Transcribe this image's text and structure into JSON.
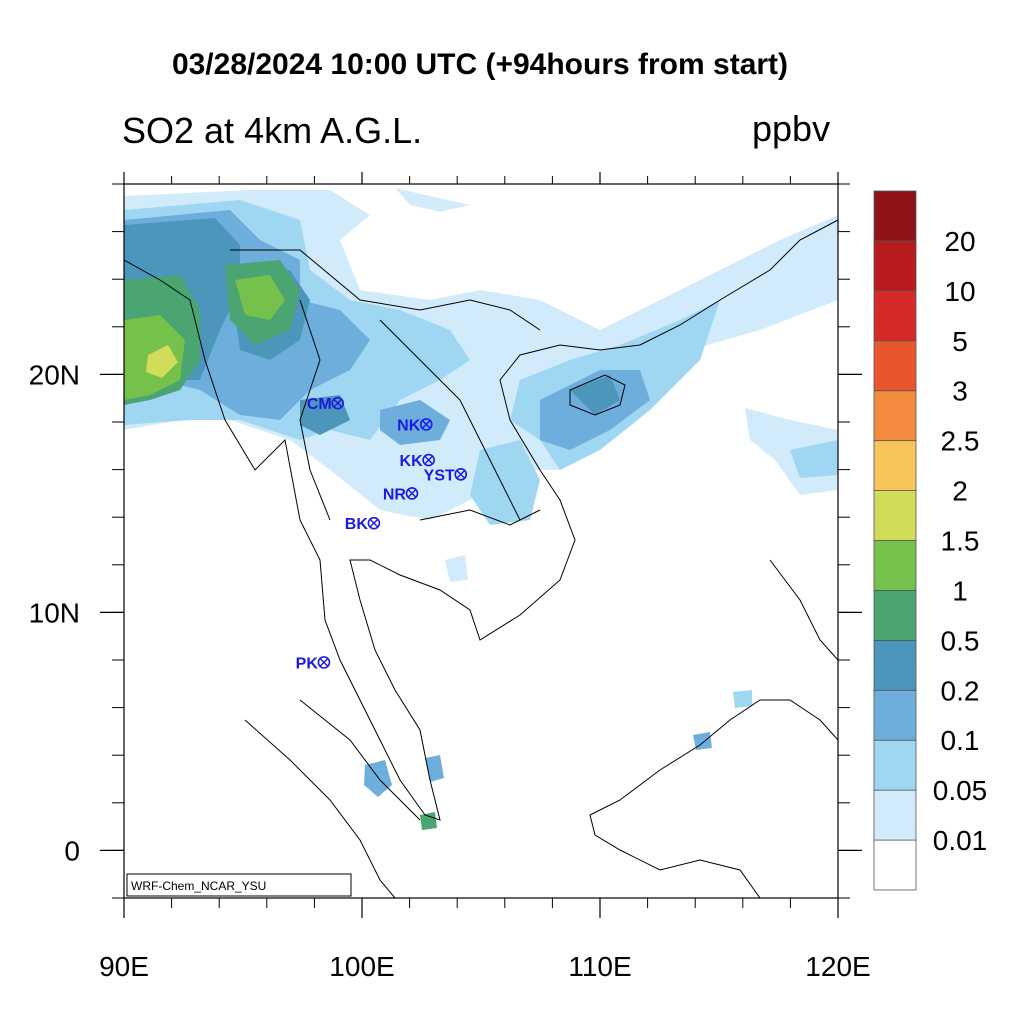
{
  "title": "03/28/2024 10:00 UTC (+94hours from start)",
  "subtitle": "SO2 at 4km A.G.L.",
  "units": "ppbv",
  "credit": "WRF-Chem_NCAR_YSU",
  "map": {
    "lon_range": [
      90,
      120
    ],
    "lat_range": [
      -2,
      28
    ],
    "lon_ticks": [
      {
        "value": 90,
        "label": "90E"
      },
      {
        "value": 100,
        "label": "100E"
      },
      {
        "value": 110,
        "label": "110E"
      },
      {
        "value": 120,
        "label": "120E"
      }
    ],
    "lat_ticks": [
      {
        "value": 20,
        "label": "20N"
      },
      {
        "value": 10,
        "label": "10N"
      },
      {
        "value": 0,
        "label": "0"
      }
    ]
  },
  "colorbar": {
    "levels": [
      "0.01",
      "0.05",
      "0.1",
      "0.2",
      "0.5",
      "1",
      "1.5",
      "2",
      "2.5",
      "3",
      "5",
      "10",
      "20"
    ],
    "colors": [
      "#ffffff",
      "#d2ebfb",
      "#9fd6f2",
      "#6eaedd",
      "#4d96bb",
      "#4aa572",
      "#76c04c",
      "#d1dc5a",
      "#f8c55a",
      "#f48a3e",
      "#e85630",
      "#d62a2a",
      "#b81c1e",
      "#8e1417"
    ]
  },
  "stations": [
    {
      "label": "CM",
      "lon": 98.98,
      "lat": 18.79
    },
    {
      "label": "NK",
      "lon": 102.7,
      "lat": 17.9
    },
    {
      "label": "KK",
      "lon": 102.8,
      "lat": 16.4
    },
    {
      "label": "YST",
      "lon": 104.15,
      "lat": 15.8
    },
    {
      "label": "NR",
      "lon": 102.1,
      "lat": 15.0
    },
    {
      "label": "BK",
      "lon": 100.5,
      "lat": 13.75
    },
    {
      "label": "PK",
      "lon": 98.4,
      "lat": 7.9
    }
  ]
}
